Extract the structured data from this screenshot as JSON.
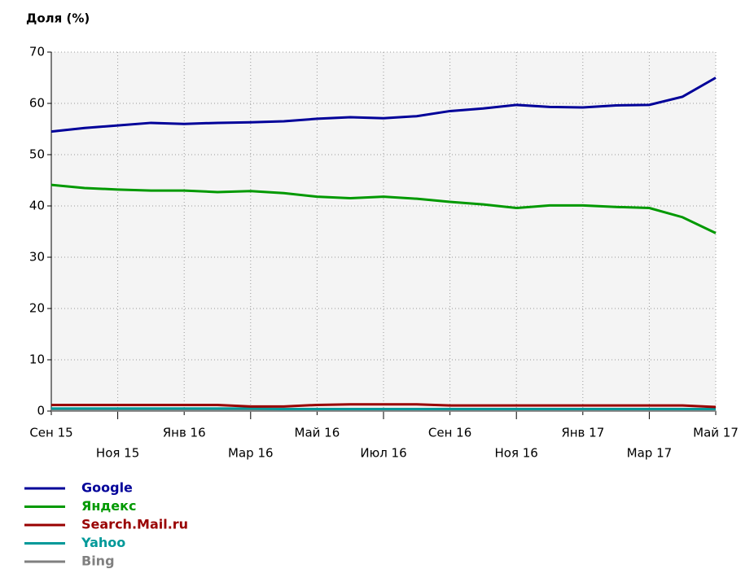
{
  "chart_data": {
    "type": "line",
    "title": "Доля (%)",
    "categories": [
      "Сен 15",
      null,
      "Ноя 15",
      null,
      "Янв 16",
      null,
      "Мар 16",
      null,
      "Май 16",
      null,
      "Июл 16",
      null,
      "Сен 16",
      null,
      "Ноя 16",
      null,
      "Янв 17",
      null,
      "Мар 17",
      null,
      "Май 17"
    ],
    "series": [
      {
        "name": "Google",
        "color": "#000099",
        "values": [
          54.5,
          55.2,
          55.7,
          56.2,
          56.0,
          56.2,
          56.3,
          56.5,
          57.0,
          57.3,
          57.1,
          57.5,
          58.5,
          59.0,
          59.7,
          59.3,
          59.2,
          59.6,
          59.7,
          61.3,
          65.0
        ]
      },
      {
        "name": "Яндекс",
        "color": "#009900",
        "values": [
          44.1,
          43.5,
          43.2,
          43.0,
          43.0,
          42.7,
          42.9,
          42.5,
          41.8,
          41.5,
          41.8,
          41.4,
          40.8,
          40.3,
          39.6,
          40.1,
          40.1,
          39.8,
          39.6,
          37.8,
          34.7
        ]
      },
      {
        "name": "Search.Mail.ru",
        "color": "#990000",
        "values": [
          1.2,
          1.2,
          1.2,
          1.2,
          1.2,
          1.2,
          0.9,
          0.9,
          1.2,
          1.3,
          1.3,
          1.3,
          1.1,
          1.1,
          1.1,
          1.1,
          1.1,
          1.1,
          1.1,
          1.1,
          0.8
        ]
      },
      {
        "name": "Yahoo",
        "color": "#009999",
        "values": [
          0.5,
          0.5,
          0.5,
          0.5,
          0.5,
          0.5,
          0.5,
          0.4,
          0.4,
          0.4,
          0.4,
          0.4,
          0.4,
          0.4,
          0.4,
          0.4,
          0.4,
          0.4,
          0.4,
          0.4,
          0.4
        ]
      },
      {
        "name": "Bing",
        "color": "#808080",
        "values": [
          0.1,
          0.1,
          0.1,
          0.1,
          0.1,
          0.1,
          0.1,
          0.1,
          0.1,
          0.1,
          0.1,
          0.1,
          0.1,
          0.1,
          0.1,
          0.1,
          0.1,
          0.1,
          0.1,
          0.1,
          0.1
        ]
      }
    ],
    "ylim": [
      0,
      70
    ],
    "yticks": [
      0,
      10,
      20,
      30,
      40,
      50,
      60,
      70
    ],
    "grid": true
  }
}
